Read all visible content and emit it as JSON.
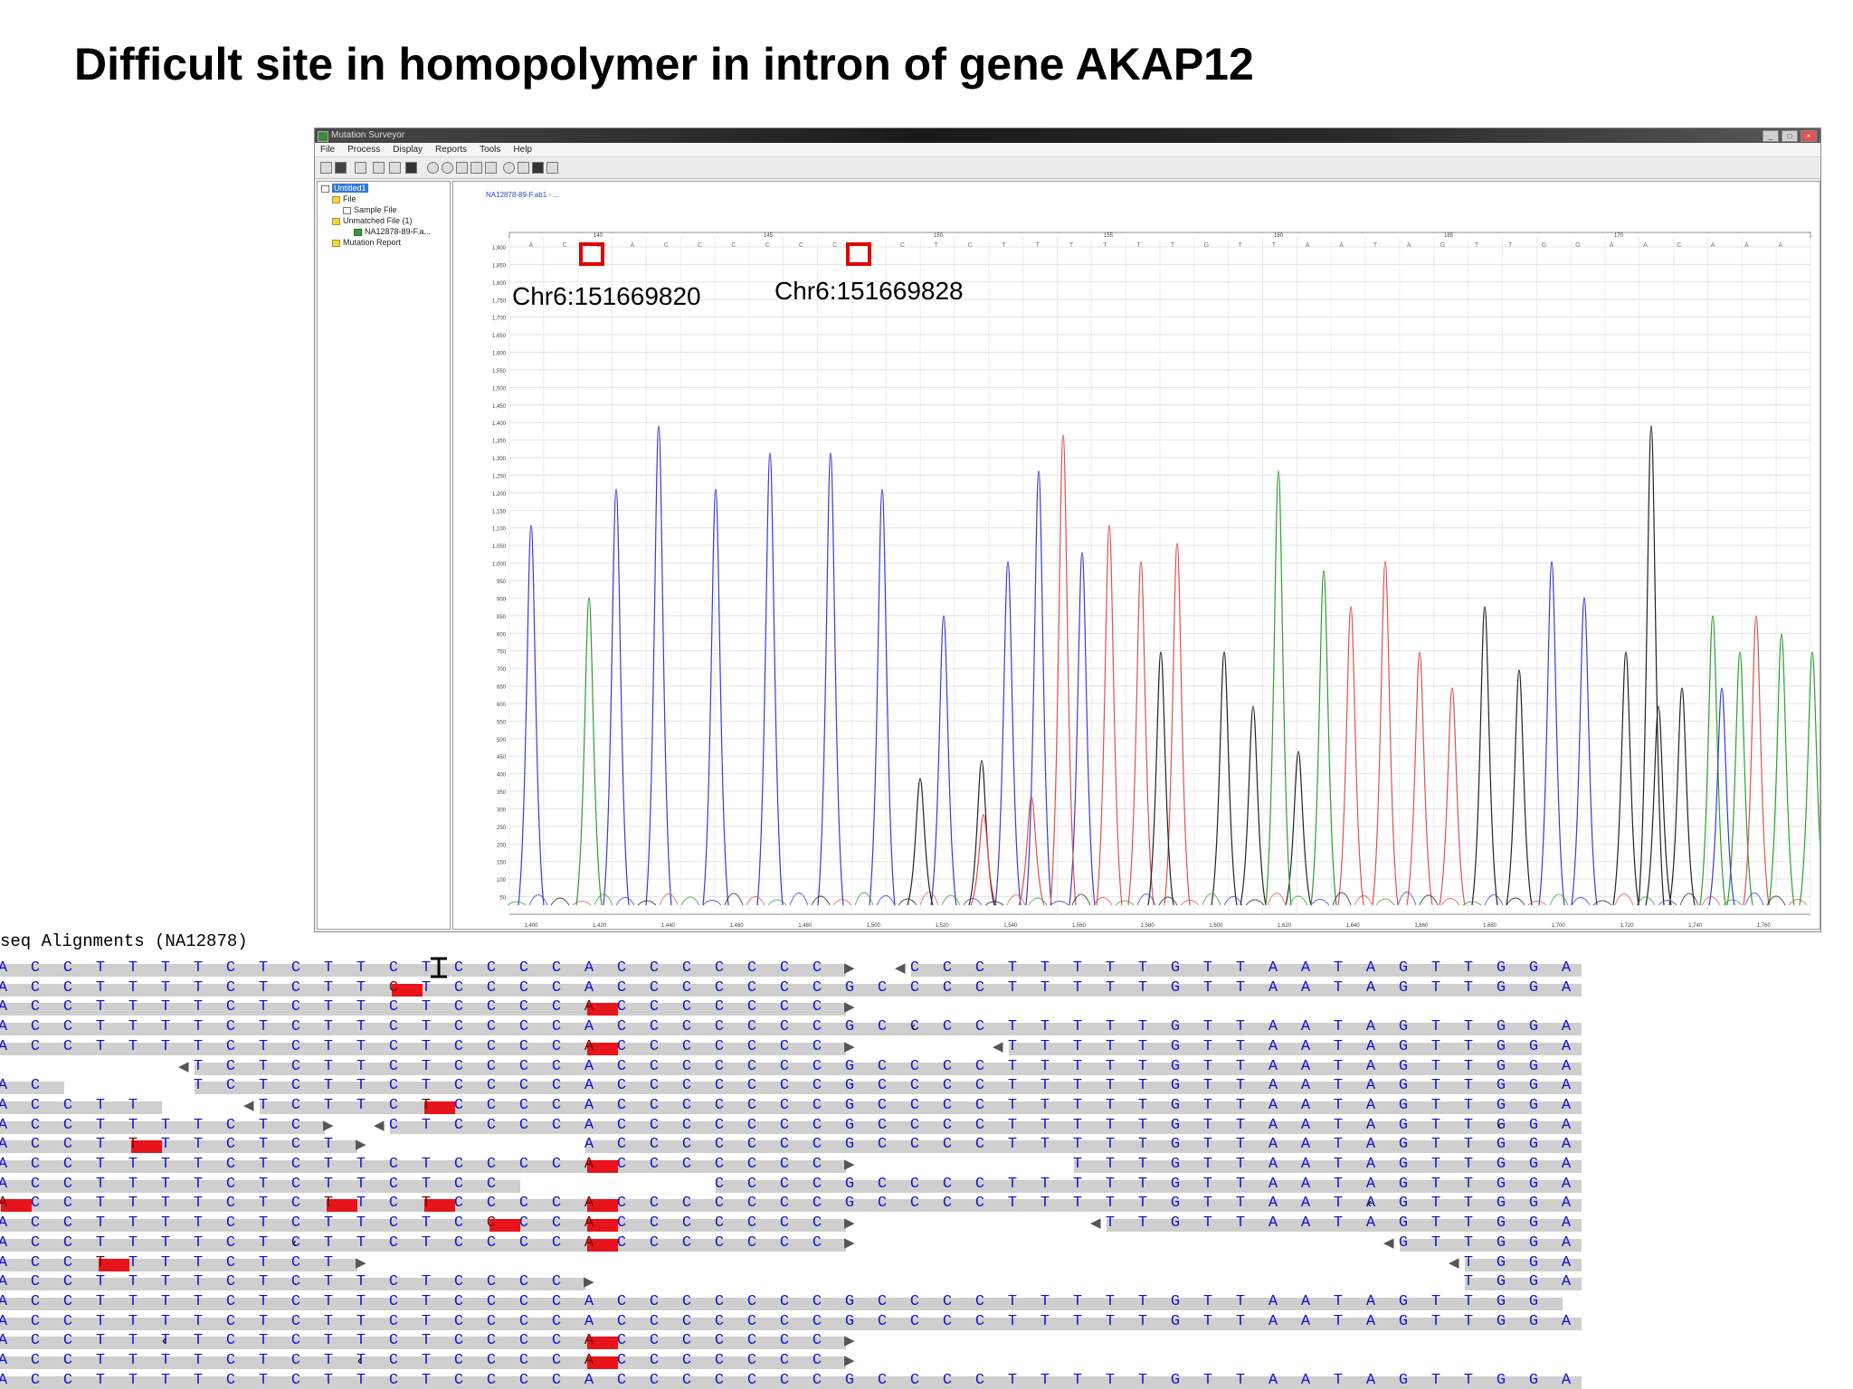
{
  "slide": {
    "title": "Difficult site in homopolymer in intron of gene AKAP12"
  },
  "app": {
    "window_title": "Mutation Surveyor",
    "menu": [
      "File",
      "Process",
      "Display",
      "Reports",
      "Tools",
      "Help"
    ],
    "tree": {
      "root": "Untitled1",
      "items": [
        "File",
        "Sample File",
        "Unmatched File (1)",
        "NA12878-89-F.a...",
        "Mutation Report"
      ]
    },
    "trace": {
      "file_label": "NA12878-89-F.ab1 - ...",
      "annotations": [
        {
          "label": "Chr6:151669820"
        },
        {
          "label": "Chr6:151669828"
        }
      ],
      "basecall": [
        "A",
        "C",
        "C",
        "A",
        "C",
        "C",
        "C",
        "C",
        "C",
        "C",
        "C",
        "C",
        "T",
        "C",
        "T",
        "T",
        "T",
        "T",
        "T",
        "T",
        "G",
        "T",
        "T",
        "A",
        "A",
        "T",
        "A",
        "G",
        "T",
        "T",
        "G",
        "G",
        "A",
        "A",
        "C",
        "A",
        "A",
        "A"
      ],
      "x_ticks": [
        "1,400",
        "1,420",
        "1,440",
        "1,460",
        "1,480",
        "1,500",
        "1,520",
        "1,540",
        "1,560",
        "1,580",
        "1,600",
        "1,620",
        "1,640",
        "1,660",
        "1,680",
        "1,700",
        "1,720",
        "1,740",
        "1,760"
      ],
      "y_ticks": [
        "1,900",
        "1,850",
        "1,800",
        "1,750",
        "1,700",
        "1,650",
        "1,600",
        "1,550",
        "1,500",
        "1,450",
        "1,400",
        "1,350",
        "1,300",
        "1,250",
        "1,200",
        "1,150",
        "1,100",
        "1,050",
        "1,000",
        "950",
        "900",
        "850",
        "800",
        "750",
        "700",
        "650",
        "600",
        "550",
        "500",
        "450",
        "400",
        "350",
        "300",
        "250",
        "200",
        "150",
        "100",
        "50"
      ],
      "position_ticks": [
        "140",
        "145",
        "150",
        "155",
        "160",
        "165",
        "170"
      ],
      "colors": {
        "A": "#2ca02c",
        "C": "#3a3ad8",
        "G": "#222222",
        "T": "#e05050"
      }
    }
  },
  "alignment": {
    "header": "seq Alignments (NA12878)",
    "reference": [
      "A",
      "C",
      "C",
      "T",
      "T",
      "T",
      "T",
      "C",
      "T",
      "C",
      "T",
      "T",
      "C",
      "T",
      "C",
      "C",
      "C",
      "C",
      "A",
      "C",
      "C",
      "C",
      "C",
      "C",
      "C",
      "C",
      "G",
      "C",
      "C",
      "C",
      "C",
      "T",
      "T",
      "T",
      "T",
      "T",
      "G",
      "T",
      "T",
      "A",
      "A",
      "T",
      "A",
      "G",
      "T",
      "T",
      "G",
      "G",
      "A"
    ],
    "rows": [
      {
        "start": 0,
        "end": 26,
        "rstart": 28,
        "rend": 49,
        "mm": [],
        "la": false,
        "ra": true,
        "rla": true
      },
      {
        "start": 0,
        "end": 49,
        "mm": [
          12
        ],
        "la": false,
        "ra": false
      },
      {
        "start": 0,
        "end": 26,
        "mm": [
          18
        ],
        "ra": true
      },
      {
        "start": 0,
        "end": 49,
        "mm": [],
        "ins": [
          28
        ]
      },
      {
        "start": 0,
        "end": 26,
        "rstart": 31,
        "rend": 49,
        "mm": [
          18
        ],
        "ra": true,
        "rla": true
      },
      {
        "start": 6,
        "end": 49,
        "mm": [],
        "la": true
      },
      {
        "start": 0,
        "end": 2,
        "rstart": 6,
        "rend": 49,
        "mm": []
      },
      {
        "start": 0,
        "end": 5,
        "rstart": 8,
        "rend": 49,
        "mm": [
          13
        ],
        "rla": true
      },
      {
        "start": 0,
        "end": 10,
        "rstart": 12,
        "rend": 49,
        "mm": [],
        "ra": true,
        "rla": true,
        "ins": [
          46
        ]
      },
      {
        "start": 0,
        "end": 11,
        "rstart": 18,
        "rend": 49,
        "mm": [
          4
        ],
        "ra": true
      },
      {
        "start": 0,
        "end": 26,
        "rstart": 33,
        "rend": 49,
        "mm": [
          18
        ],
        "ra": true
      },
      {
        "start": 0,
        "end": 16,
        "rstart": 22,
        "rend": 49,
        "mm": []
      },
      {
        "start": 0,
        "end": 49,
        "mm": [
          0,
          10,
          13,
          18
        ],
        "ins": [
          42
        ]
      },
      {
        "start": 0,
        "end": 26,
        "rstart": 34,
        "rend": 49,
        "mm": [
          15,
          18
        ],
        "ra": true,
        "rla": true
      },
      {
        "start": 0,
        "end": 26,
        "rstart": 43,
        "rend": 49,
        "mm": [
          18
        ],
        "ra": true,
        "rla": true,
        "ins": [
          9
        ]
      },
      {
        "start": 0,
        "end": 11,
        "rstart": 45,
        "rend": 49,
        "mm": [
          3
        ],
        "ra": true,
        "rla": true
      },
      {
        "start": 0,
        "end": 18,
        "rstart": 45,
        "rend": 49,
        "mm": [],
        "ra": true
      },
      {
        "start": 0,
        "end": 48,
        "mm": []
      },
      {
        "start": 0,
        "end": 49,
        "mm": []
      },
      {
        "start": 0,
        "end": 26,
        "mm": [
          18
        ],
        "ra": true,
        "ins": [
          5
        ]
      },
      {
        "start": 0,
        "end": 26,
        "mm": [
          18
        ],
        "ra": true,
        "ins": [
          11
        ]
      },
      {
        "start": 0,
        "end": 49,
        "mm": []
      }
    ]
  }
}
